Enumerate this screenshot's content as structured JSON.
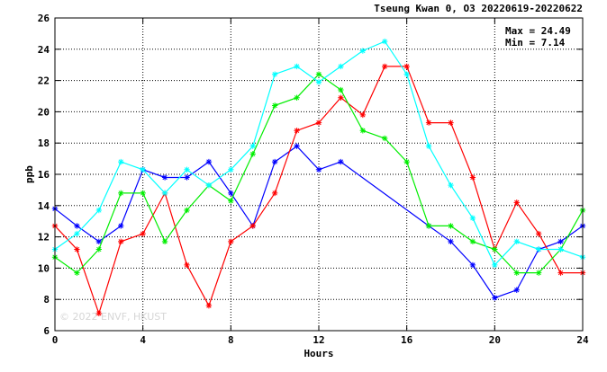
{
  "chart_data": {
    "type": "line",
    "title": "Tseung Kwan 0, O3 20220619-20220622",
    "xlabel": "Hours",
    "ylabel": "ppb",
    "xlim": [
      0,
      24
    ],
    "ylim": [
      6,
      26
    ],
    "x_ticks": [
      "0",
      "4",
      "8",
      "12",
      "16",
      "20",
      "24"
    ],
    "y_ticks": [
      "6",
      "8",
      "10",
      "12",
      "14",
      "16",
      "18",
      "20",
      "22",
      "24",
      "26"
    ],
    "grid": true,
    "stats": {
      "max_text": "Max = 24.49",
      "min_text": "Min =  7.14"
    },
    "watermark": "© 2022 ENVF, HKUST",
    "marker": "asterisk",
    "series": [
      {
        "color": "#0000ff",
        "points": [
          [
            0,
            13.8
          ],
          [
            1,
            12.7
          ],
          [
            2,
            11.7
          ],
          [
            3,
            12.7
          ],
          [
            4,
            16.3
          ],
          [
            5,
            15.8
          ],
          [
            6,
            15.8
          ],
          [
            7,
            16.8
          ],
          [
            8,
            14.8
          ],
          [
            9,
            12.7
          ],
          [
            10,
            16.8
          ],
          [
            11,
            17.8
          ],
          [
            12,
            16.3
          ],
          [
            13,
            16.8
          ],
          [
            17,
            12.7
          ],
          [
            18,
            11.7
          ],
          [
            19,
            10.2
          ],
          [
            20,
            8.1
          ],
          [
            21,
            8.6
          ],
          [
            22,
            11.2
          ],
          [
            23,
            11.7
          ],
          [
            24,
            12.7
          ]
        ]
      },
      {
        "color": "#ff0000",
        "points": [
          [
            0,
            12.7
          ],
          [
            1,
            11.2
          ],
          [
            2,
            7.1
          ],
          [
            3,
            11.7
          ],
          [
            4,
            12.2
          ],
          [
            5,
            14.8
          ],
          [
            6,
            10.2
          ],
          [
            7,
            7.6
          ],
          [
            8,
            11.7
          ],
          [
            9,
            12.7
          ],
          [
            10,
            14.8
          ],
          [
            11,
            18.8
          ],
          [
            12,
            19.3
          ],
          [
            13,
            20.9
          ],
          [
            14,
            19.8
          ],
          [
            15,
            22.9
          ],
          [
            16,
            22.9
          ],
          [
            17,
            19.3
          ],
          [
            18,
            19.3
          ],
          [
            19,
            15.8
          ],
          [
            20,
            11.2
          ],
          [
            21,
            14.2
          ],
          [
            22,
            12.2
          ],
          [
            23,
            9.7
          ],
          [
            24,
            9.7
          ]
        ]
      },
      {
        "color": "#00ee00",
        "points": [
          [
            0,
            10.7
          ],
          [
            1,
            9.7
          ],
          [
            2,
            11.2
          ],
          [
            3,
            14.8
          ],
          [
            4,
            14.8
          ],
          [
            5,
            11.7
          ],
          [
            6,
            13.7
          ],
          [
            7,
            15.3
          ],
          [
            8,
            14.3
          ],
          [
            9,
            17.3
          ],
          [
            10,
            20.4
          ],
          [
            11,
            20.9
          ],
          [
            12,
            22.4
          ],
          [
            13,
            21.4
          ],
          [
            14,
            18.8
          ],
          [
            15,
            18.3
          ],
          [
            16,
            16.8
          ],
          [
            17,
            12.7
          ],
          [
            18,
            12.7
          ],
          [
            19,
            11.7
          ],
          [
            20,
            11.2
          ],
          [
            21,
            9.7
          ],
          [
            22,
            9.7
          ],
          [
            23,
            11.2
          ],
          [
            24,
            13.7
          ]
        ]
      },
      {
        "color": "#00ffff",
        "points": [
          [
            0,
            11.2
          ],
          [
            1,
            12.2
          ],
          [
            2,
            13.7
          ],
          [
            3,
            16.8
          ],
          [
            4,
            16.3
          ],
          [
            5,
            14.8
          ],
          [
            6,
            16.3
          ],
          [
            7,
            15.3
          ],
          [
            8,
            16.3
          ],
          [
            9,
            17.8
          ],
          [
            10,
            22.4
          ],
          [
            11,
            22.9
          ],
          [
            12,
            21.9
          ],
          [
            13,
            22.9
          ],
          [
            14,
            23.9
          ],
          [
            15,
            24.5
          ],
          [
            16,
            22.4
          ],
          [
            17,
            17.8
          ],
          [
            18,
            15.3
          ],
          [
            19,
            13.2
          ],
          [
            20,
            10.2
          ],
          [
            21,
            11.7
          ],
          [
            22,
            11.2
          ],
          [
            23,
            11.2
          ],
          [
            24,
            10.7
          ]
        ]
      }
    ]
  }
}
